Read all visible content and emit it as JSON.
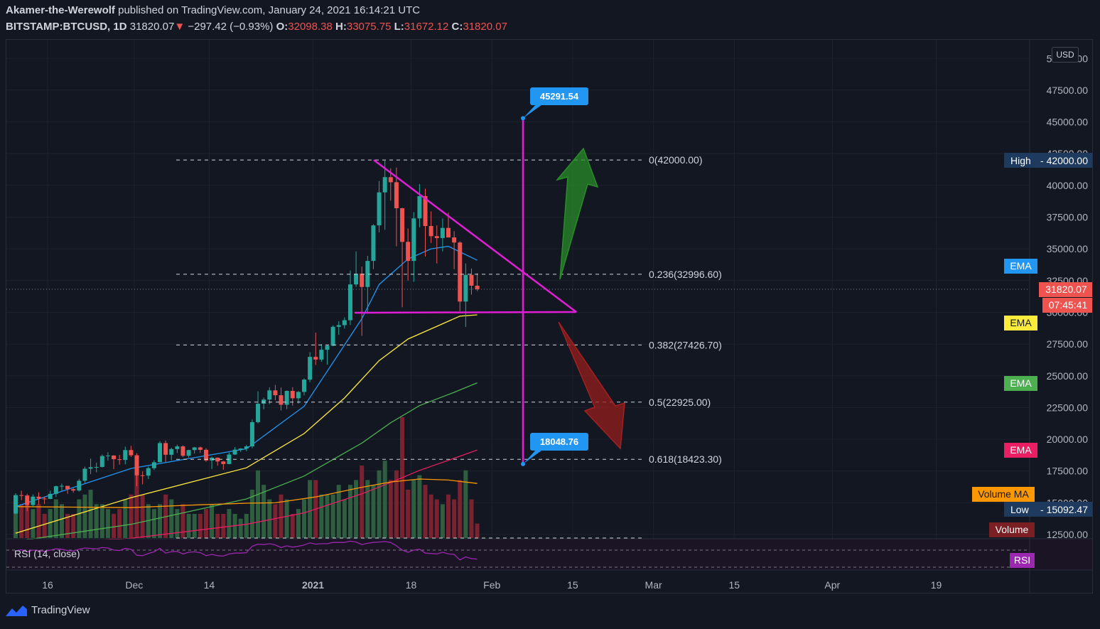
{
  "header": {
    "author": "Akamer-the-Werewolf",
    "published": "published on TradingView.com, January 24, 2021 16:14:21 UTC",
    "symbol": "BITSTAMP:BTCUSD, 1D",
    "last": "31820.07",
    "change": "−297.42 (−0.93%)",
    "o_label": "O:",
    "o": "32098.38",
    "h_label": "H:",
    "h": "33075.75",
    "l_label": "L:",
    "l": "31672.12",
    "c_label": "C:",
    "c": "31820.07"
  },
  "currency": "USD",
  "footer": {
    "brand": "TradingView"
  },
  "colors": {
    "up": "#26a69a",
    "down": "#ef5350",
    "magenta": "#e21dd6",
    "ema20": "#2196f3",
    "ema50": "#ffeb3b",
    "ema100": "#4caf50",
    "ema200": "#e91e63",
    "volume_ma": "#ff9800",
    "rsi": "#9c27b0"
  },
  "chart_data": {
    "type": "candlestick",
    "title": "",
    "y_axis_ticks": [
      12500,
      15000,
      17500,
      20000,
      22500,
      25000,
      27500,
      30000,
      32500,
      35000,
      37500,
      40000,
      42500,
      45000,
      47500,
      50000
    ],
    "y_axis_tick_labels": [
      "12500.00",
      "15000.00",
      "17500.00",
      "20000.00",
      "22500.00",
      "25000.00",
      "27500.00",
      "30000.00",
      "32500.00",
      "35000.00",
      "37500.00",
      "40000.00",
      "42500.00",
      "45000.00",
      "47500.00",
      "50000.00"
    ],
    "x_axis_labels": [
      "16",
      "Dec",
      "14",
      "2021",
      "18",
      "Feb",
      "15",
      "Mar",
      "15",
      "Apr",
      "19"
    ],
    "x_axis_dates": [
      "2020-11-16",
      "2020-12-01",
      "2020-12-14",
      "2021-01-01",
      "2021-01-18",
      "2021-02-01",
      "2021-02-15",
      "2021-03-01",
      "2021-03-15",
      "2021-04-01",
      "2021-04-19"
    ],
    "ohlc": [
      [
        "2020-11-05",
        14150,
        15750,
        14100,
        15600
      ],
      [
        "2020-11-06",
        15600,
        15950,
        15200,
        15570
      ],
      [
        "2020-11-07",
        15570,
        15700,
        14350,
        14820
      ],
      [
        "2020-11-08",
        14820,
        15650,
        14700,
        15480
      ],
      [
        "2020-11-09",
        15480,
        15830,
        14850,
        15330
      ],
      [
        "2020-11-10",
        15330,
        15480,
        14900,
        15300
      ],
      [
        "2020-11-11",
        15300,
        15950,
        15280,
        15700
      ],
      [
        "2020-11-12",
        15700,
        16350,
        15450,
        16300
      ],
      [
        "2020-11-13",
        16300,
        16500,
        15950,
        16330
      ],
      [
        "2020-11-14",
        16330,
        16330,
        15700,
        16070
      ],
      [
        "2020-11-15",
        16070,
        16150,
        15800,
        15960
      ],
      [
        "2020-11-16",
        15960,
        16880,
        15880,
        16730
      ],
      [
        "2020-11-17",
        16730,
        17850,
        16550,
        17680
      ],
      [
        "2020-11-18",
        17680,
        18480,
        17250,
        17800
      ],
      [
        "2020-11-19",
        17800,
        18150,
        17400,
        17820
      ],
      [
        "2020-11-20",
        17820,
        18800,
        17770,
        18680
      ],
      [
        "2020-11-21",
        18680,
        18980,
        18320,
        18720
      ],
      [
        "2020-11-22",
        18720,
        18750,
        17650,
        18430
      ],
      [
        "2020-11-23",
        18430,
        18770,
        18000,
        18370
      ],
      [
        "2020-11-24",
        18370,
        19420,
        18030,
        19150
      ],
      [
        "2020-11-25",
        19150,
        19480,
        18600,
        18740
      ],
      [
        "2020-11-26",
        18740,
        18900,
        16300,
        17160
      ],
      [
        "2020-11-27",
        17160,
        17470,
        16450,
        17140
      ],
      [
        "2020-11-28",
        17140,
        17850,
        16870,
        17720
      ],
      [
        "2020-11-29",
        17720,
        18350,
        17580,
        18190
      ],
      [
        "2020-11-30",
        18190,
        19850,
        18180,
        19700
      ],
      [
        "2020-12-01",
        19700,
        19900,
        18200,
        18780
      ],
      [
        "2020-12-02",
        18780,
        19340,
        18350,
        19230
      ],
      [
        "2020-12-03",
        19230,
        19570,
        18920,
        19440
      ],
      [
        "2020-12-04",
        19440,
        19520,
        18600,
        18700
      ],
      [
        "2020-12-05",
        18700,
        19170,
        18550,
        19150
      ],
      [
        "2020-12-06",
        19150,
        19400,
        18870,
        19360
      ],
      [
        "2020-12-07",
        19360,
        19420,
        18920,
        19170
      ],
      [
        "2020-12-08",
        19170,
        19290,
        18220,
        18330
      ],
      [
        "2020-12-09",
        18330,
        18630,
        17650,
        18550
      ],
      [
        "2020-12-10",
        18550,
        18560,
        17920,
        18250
      ],
      [
        "2020-12-11",
        18250,
        18280,
        17600,
        18050
      ],
      [
        "2020-12-12",
        18050,
        18950,
        18030,
        18800
      ],
      [
        "2020-12-13",
        18800,
        19380,
        18760,
        19180
      ],
      [
        "2020-12-14",
        19180,
        19300,
        19000,
        19270
      ],
      [
        "2020-12-15",
        19270,
        19550,
        19050,
        19440
      ],
      [
        "2020-12-16",
        19440,
        21560,
        19300,
        21350
      ],
      [
        "2020-12-17",
        21350,
        23780,
        21250,
        22800
      ],
      [
        "2020-12-18",
        22800,
        23280,
        22350,
        23130
      ],
      [
        "2020-12-19",
        23130,
        24100,
        22770,
        23850
      ],
      [
        "2020-12-20",
        23850,
        24280,
        23080,
        23470
      ],
      [
        "2020-12-21",
        23470,
        24080,
        22270,
        22720
      ],
      [
        "2020-12-22",
        22720,
        23850,
        22370,
        23810
      ],
      [
        "2020-12-23",
        23810,
        24100,
        22650,
        23230
      ],
      [
        "2020-12-24",
        23230,
        23800,
        22800,
        23730
      ],
      [
        "2020-12-25",
        23730,
        24800,
        23450,
        24700
      ],
      [
        "2020-12-26",
        24700,
        26850,
        24500,
        26490
      ],
      [
        "2020-12-27",
        26490,
        28400,
        25850,
        26280
      ],
      [
        "2020-12-28",
        26280,
        27500,
        26100,
        27050
      ],
      [
        "2020-12-29",
        27050,
        27400,
        25880,
        27370
      ],
      [
        "2020-12-30",
        27370,
        28980,
        27330,
        28860
      ],
      [
        "2020-12-31",
        28860,
        29300,
        28230,
        28990
      ],
      [
        "2021-01-01",
        28990,
        29600,
        28720,
        29380
      ],
      [
        "2021-01-02",
        29380,
        33300,
        29000,
        32200
      ],
      [
        "2021-01-03",
        32200,
        34800,
        32000,
        33050
      ],
      [
        "2021-01-04",
        33050,
        33600,
        28150,
        32000
      ],
      [
        "2021-01-05",
        32000,
        34450,
        29900,
        34050
      ],
      [
        "2021-01-06",
        34050,
        36950,
        33400,
        36850
      ],
      [
        "2021-01-07",
        36850,
        40350,
        36300,
        39450
      ],
      [
        "2021-01-08",
        39450,
        41950,
        36500,
        40650
      ],
      [
        "2021-01-09",
        40650,
        41350,
        38800,
        40250
      ],
      [
        "2021-01-10",
        40250,
        41400,
        35200,
        38200
      ],
      [
        "2021-01-11",
        38200,
        38250,
        30400,
        35550
      ],
      [
        "2021-01-12",
        35550,
        36600,
        32500,
        34050
      ],
      [
        "2021-01-13",
        34050,
        37900,
        32400,
        37400
      ],
      [
        "2021-01-14",
        37400,
        40100,
        36700,
        39150
      ],
      [
        "2021-01-15",
        39150,
        39750,
        34400,
        36800
      ],
      [
        "2021-01-16",
        36800,
        37950,
        35450,
        36000
      ],
      [
        "2021-01-17",
        36000,
        36850,
        33850,
        35850
      ],
      [
        "2021-01-18",
        35850,
        37400,
        34800,
        36650
      ],
      [
        "2021-01-19",
        36650,
        37850,
        35900,
        35900
      ],
      [
        "2021-01-20",
        35900,
        36400,
        33400,
        35500
      ],
      [
        "2021-01-21",
        35500,
        35600,
        30100,
        30850
      ],
      [
        "2021-01-22",
        30850,
        33850,
        28850,
        32950
      ],
      [
        "2021-01-23",
        32950,
        33450,
        31400,
        32100
      ],
      [
        "2021-01-24",
        32098.38,
        33075.75,
        31672.12,
        31820.07
      ]
    ],
    "ema": [
      {
        "name": "EMA",
        "color": "#2196f3",
        "values": [
          [
            0,
            14700
          ],
          [
            20,
            17700
          ],
          [
            40,
            19250
          ],
          [
            50,
            22600
          ],
          [
            60,
            29500
          ],
          [
            63,
            32200
          ],
          [
            68,
            34200
          ],
          [
            72,
            35000
          ],
          [
            75,
            35200
          ],
          [
            80,
            34100
          ]
        ]
      },
      {
        "name": "EMA",
        "color": "#ffeb3b",
        "values": [
          [
            0,
            12600
          ],
          [
            20,
            15400
          ],
          [
            40,
            17750
          ],
          [
            50,
            20450
          ],
          [
            57,
            23250
          ],
          [
            63,
            26200
          ],
          [
            68,
            27900
          ],
          [
            73,
            28900
          ],
          [
            77,
            29700
          ],
          [
            80,
            29800
          ]
        ]
      },
      {
        "name": "EMA",
        "color": "#4caf50",
        "values": [
          [
            0,
            11950
          ],
          [
            20,
            13300
          ],
          [
            40,
            15300
          ],
          [
            50,
            17100
          ],
          [
            60,
            19700
          ],
          [
            65,
            21300
          ],
          [
            70,
            22650
          ],
          [
            76,
            23700
          ],
          [
            80,
            24450
          ]
        ]
      },
      {
        "name": "EMA",
        "color": "#e91e63",
        "values": [
          [
            0,
            11650
          ],
          [
            20,
            12200
          ],
          [
            40,
            13300
          ],
          [
            50,
            14200
          ],
          [
            60,
            15700
          ],
          [
            65,
            16600
          ],
          [
            70,
            17550
          ],
          [
            76,
            18500
          ],
          [
            80,
            19150
          ]
        ]
      }
    ],
    "volume_scale_note": "relative units",
    "volume": [
      6,
      7,
      8,
      6,
      7,
      5,
      6,
      8,
      7,
      5,
      5,
      8,
      9,
      10,
      7,
      7,
      6,
      5,
      6,
      8,
      9,
      14,
      9,
      7,
      6,
      7,
      9,
      8,
      6,
      7,
      5,
      5,
      5,
      6,
      7,
      5,
      5,
      6,
      5,
      4,
      5,
      10,
      14,
      11,
      8,
      7,
      9,
      8,
      5,
      6,
      8,
      12,
      12,
      9,
      9,
      9,
      11,
      8,
      11,
      12,
      15,
      12,
      11,
      14,
      16,
      12,
      14,
      25,
      10,
      12,
      13,
      11,
      9,
      8,
      7,
      9,
      8,
      12,
      14,
      8,
      3
    ],
    "volume_ma": [
      [
        0,
        6.5
      ],
      [
        20,
        6.3
      ],
      [
        30,
        6.8
      ],
      [
        40,
        7.2
      ],
      [
        45,
        7.3
      ],
      [
        52,
        8.5
      ],
      [
        60,
        10.5
      ],
      [
        65,
        11.6
      ],
      [
        70,
        12.2
      ],
      [
        75,
        12.0
      ],
      [
        80,
        11.3
      ]
    ],
    "fib_levels": [
      {
        "ratio": "0",
        "value": 42000.0,
        "label": "0(42000.00)"
      },
      {
        "ratio": "0.236",
        "value": 32996.6,
        "label": "0.236(32996.60)"
      },
      {
        "ratio": "0.382",
        "value": 27426.7,
        "label": "0.382(27426.70)"
      },
      {
        "ratio": "0.5",
        "value": 22925.0,
        "label": "0.5(22925.00)"
      },
      {
        "ratio": "0.618",
        "value": 18423.3,
        "label": "0.618(18423.30)"
      }
    ],
    "targets": {
      "upper": "45291.54",
      "lower": "18048.76"
    },
    "axis_tags": {
      "high_label": "High",
      "high_value": "42000.00",
      "low_label": "Low",
      "low_value": "15092.47",
      "price": "31820.07",
      "countdown": "07:45:41",
      "ema_tags": [
        "EMA",
        "EMA",
        "EMA",
        "EMA"
      ],
      "volume_ma": "Volume MA",
      "volume": "Volume",
      "rsi": "RSI"
    },
    "rsi_label": "RSI (14, close)",
    "rsi_values": [
      68,
      71,
      66,
      70,
      69,
      67,
      70,
      73,
      72,
      69,
      68,
      72,
      75,
      74,
      73,
      76,
      75,
      70,
      69,
      74,
      72,
      58,
      57,
      62,
      66,
      74,
      63,
      66,
      67,
      61,
      65,
      66,
      64,
      57,
      60,
      57,
      56,
      61,
      63,
      63,
      64,
      79,
      84,
      83,
      85,
      82,
      76,
      80,
      77,
      79,
      82,
      87,
      84,
      85,
      85,
      88,
      88,
      88,
      91,
      89,
      83,
      86,
      88,
      89,
      90,
      88,
      80,
      70,
      65,
      70,
      72,
      63,
      62,
      61,
      65,
      61,
      60,
      47,
      54,
      50,
      49
    ]
  }
}
